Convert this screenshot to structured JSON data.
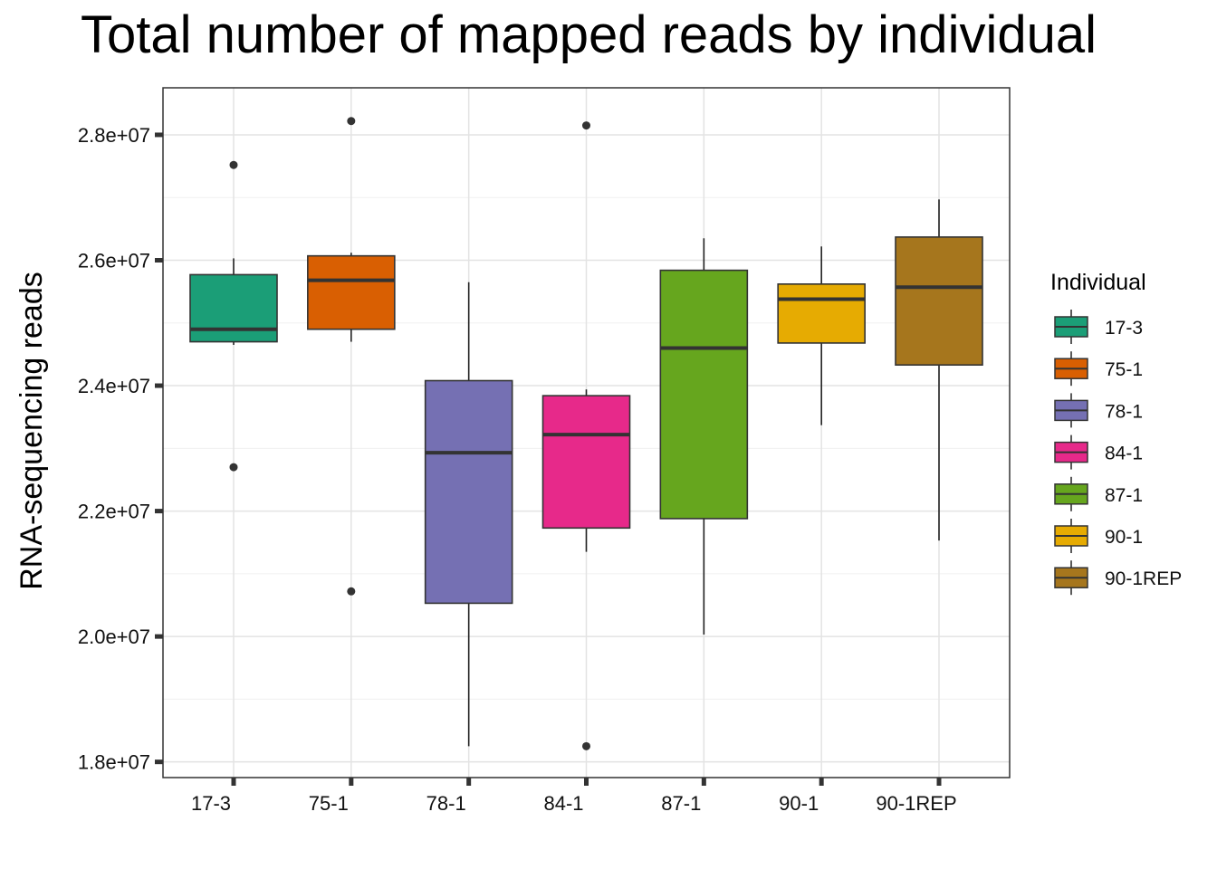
{
  "chart_data": {
    "type": "boxplot",
    "title": "Total number of mapped reads by individual",
    "xlabel": "",
    "ylabel": "RNA-sequencing reads",
    "ylim": [
      17750000,
      28750000
    ],
    "y_ticks": [
      18000000,
      20000000,
      22000000,
      24000000,
      26000000,
      28000000
    ],
    "y_tick_labels": [
      "1.8e+07",
      "2.0e+07",
      "2.2e+07",
      "2.4e+07",
      "2.6e+07",
      "2.8e+07"
    ],
    "grid": true,
    "legend": {
      "title": "Individual",
      "placement": "right"
    },
    "categories": [
      "17-3",
      "75-1",
      "78-1",
      "84-1",
      "87-1",
      "90-1",
      "90-1REP"
    ],
    "boxes": [
      {
        "name": "17-3",
        "color": "#1B9E77",
        "whisker_low": 24650000,
        "q1": 24700000,
        "median": 24900000,
        "q3": 25770000,
        "whisker_high": 26030000,
        "outliers": [
          27520000,
          22700000
        ]
      },
      {
        "name": "75-1",
        "color": "#D95F02",
        "whisker_low": 24700000,
        "q1": 24900000,
        "median": 25680000,
        "q3": 26070000,
        "whisker_high": 26120000,
        "outliers": [
          28220000,
          20720000
        ]
      },
      {
        "name": "78-1",
        "color": "#7570B3",
        "whisker_low": 18250000,
        "q1": 20530000,
        "median": 22930000,
        "q3": 24080000,
        "whisker_high": 25650000,
        "outliers": []
      },
      {
        "name": "84-1",
        "color": "#E7298A",
        "whisker_low": 21350000,
        "q1": 21730000,
        "median": 23220000,
        "q3": 23840000,
        "whisker_high": 23940000,
        "outliers": [
          28150000,
          18250000
        ]
      },
      {
        "name": "87-1",
        "color": "#66A61E",
        "whisker_low": 20030000,
        "q1": 21880000,
        "median": 24600000,
        "q3": 25840000,
        "whisker_high": 26350000,
        "outliers": []
      },
      {
        "name": "90-1",
        "color": "#E6AB02",
        "whisker_low": 23370000,
        "q1": 24680000,
        "median": 25380000,
        "q3": 25620000,
        "whisker_high": 26220000,
        "outliers": []
      },
      {
        "name": "90-1REP",
        "color": "#A6761D",
        "whisker_low": 21530000,
        "q1": 24330000,
        "median": 25570000,
        "q3": 26370000,
        "whisker_high": 26970000,
        "outliers": []
      }
    ]
  }
}
